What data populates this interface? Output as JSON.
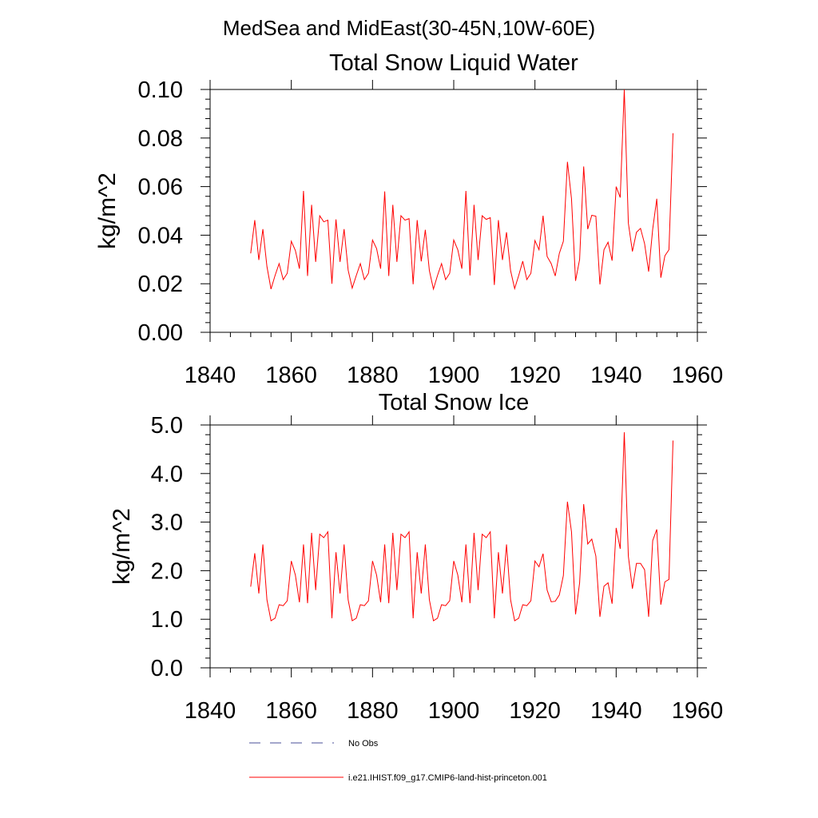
{
  "main_title": "MedSea and MidEast(30-45N,10W-60E)",
  "chart_data": [
    {
      "type": "line",
      "title": "Total Snow Liquid Water",
      "xlabel": "",
      "ylabel": "kg/m^2",
      "xlim": [
        1840,
        1960
      ],
      "ylim": [
        0.0,
        0.1
      ],
      "x_ticks": [
        "1840",
        "1860",
        "1880",
        "1900",
        "1920",
        "1940",
        "1960"
      ],
      "y_ticks": [
        "0.00",
        "0.02",
        "0.04",
        "0.06",
        "0.08",
        "0.10"
      ],
      "x_start": 1850,
      "series": [
        {
          "name": "i.e21.IHIST.f09_g17.CMIP6-land-hist-princeton.001",
          "color": "#ff0000",
          "values": [
            0.0325,
            0.0462,
            0.0298,
            0.0425,
            0.0271,
            0.0178,
            0.0234,
            0.0283,
            0.0217,
            0.0243,
            0.0375,
            0.0337,
            0.0262,
            0.0582,
            0.0232,
            0.0525,
            0.029,
            0.048,
            0.0455,
            0.0462,
            0.02,
            0.0465,
            0.029,
            0.0425,
            0.0256,
            0.0182,
            0.0234,
            0.0283,
            0.0217,
            0.0243,
            0.038,
            0.0345,
            0.0262,
            0.058,
            0.0232,
            0.0525,
            0.029,
            0.048,
            0.0462,
            0.0468,
            0.0198,
            0.0462,
            0.0292,
            0.0422,
            0.0254,
            0.0178,
            0.0234,
            0.0283,
            0.0217,
            0.0243,
            0.038,
            0.034,
            0.0262,
            0.0582,
            0.0234,
            0.0525,
            0.0298,
            0.048,
            0.0465,
            0.0472,
            0.0195,
            0.0462,
            0.0298,
            0.0412,
            0.0254,
            0.018,
            0.0234,
            0.0293,
            0.0217,
            0.0243,
            0.0378,
            0.034,
            0.048,
            0.0312,
            0.0283,
            0.0232,
            0.0325,
            0.0375,
            0.0702,
            0.055,
            0.0212,
            0.03,
            0.0683,
            0.0425,
            0.0482,
            0.0478,
            0.0197,
            0.034,
            0.0371,
            0.0295,
            0.06,
            0.0555,
            0.1,
            0.045,
            0.0333,
            0.0412,
            0.0428,
            0.0365,
            0.025,
            0.0425,
            0.055,
            0.0225,
            0.0315,
            0.034,
            0.082
          ]
        },
        {
          "name": "No Obs",
          "color": "#4a4f9a",
          "values": []
        }
      ]
    },
    {
      "type": "line",
      "title": "Total Snow Ice",
      "xlabel": "",
      "ylabel": "kg/m^2",
      "xlim": [
        1840,
        1960
      ],
      "ylim": [
        0.0,
        5.0
      ],
      "x_ticks": [
        "1840",
        "1860",
        "1880",
        "1900",
        "1920",
        "1940",
        "1960"
      ],
      "y_ticks": [
        "0.0",
        "1.0",
        "2.0",
        "3.0",
        "4.0",
        "5.0"
      ],
      "x_start": 1850,
      "series": [
        {
          "name": "i.e21.IHIST.f09_g17.CMIP6-land-hist-princeton.001",
          "color": "#ff0000",
          "values": [
            1.67,
            2.36,
            1.53,
            2.54,
            1.4,
            0.97,
            1.02,
            1.3,
            1.28,
            1.38,
            2.2,
            1.91,
            1.35,
            2.54,
            1.33,
            2.78,
            1.6,
            2.75,
            2.68,
            2.8,
            1.02,
            2.38,
            1.53,
            2.54,
            1.4,
            0.97,
            1.02,
            1.3,
            1.28,
            1.38,
            2.2,
            1.91,
            1.35,
            2.54,
            1.33,
            2.78,
            1.6,
            2.75,
            2.68,
            2.8,
            1.02,
            2.38,
            1.53,
            2.54,
            1.4,
            0.97,
            1.02,
            1.3,
            1.28,
            1.38,
            2.2,
            1.91,
            1.35,
            2.54,
            1.33,
            2.78,
            1.6,
            2.75,
            2.68,
            2.8,
            1.02,
            2.38,
            1.53,
            2.54,
            1.4,
            0.97,
            1.02,
            1.3,
            1.28,
            1.38,
            2.2,
            2.08,
            2.35,
            1.6,
            1.36,
            1.37,
            1.5,
            1.9,
            3.42,
            2.8,
            1.1,
            1.75,
            3.37,
            2.55,
            2.65,
            2.3,
            1.05,
            1.68,
            1.75,
            1.32,
            2.88,
            2.45,
            4.85,
            2.3,
            1.63,
            2.15,
            2.15,
            2.02,
            1.05,
            2.62,
            2.85,
            1.3,
            1.77,
            1.82,
            4.68
          ]
        },
        {
          "name": "No Obs",
          "color": "#4a4f9a",
          "values": []
        }
      ]
    }
  ],
  "legend": [
    {
      "label": "No Obs",
      "style": "dashed",
      "color": "#4a4f9a"
    },
    {
      "label": "i.e21.IHIST.f09_g17.CMIP6-land-hist-princeton.001",
      "style": "solid",
      "color": "#ff0000"
    }
  ]
}
